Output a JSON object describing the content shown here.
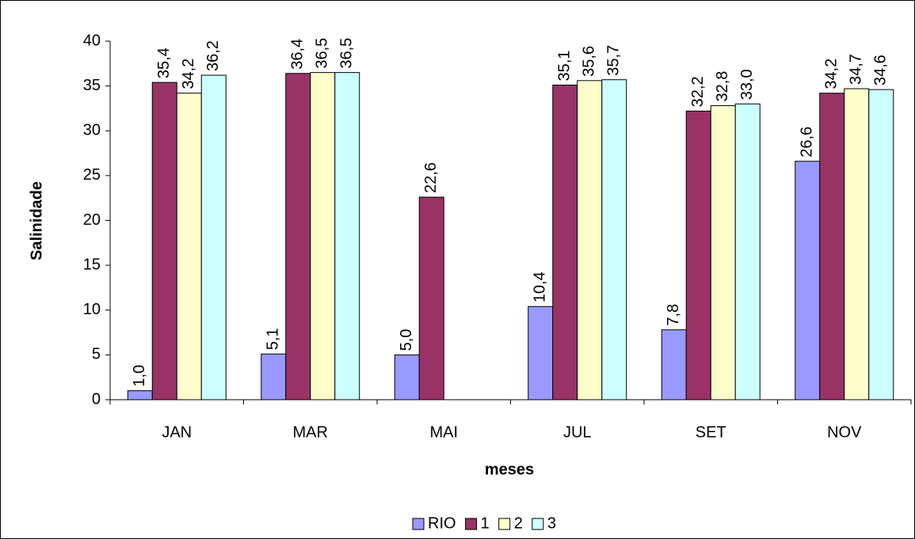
{
  "chart_data": {
    "type": "bar",
    "x_label": "meses",
    "y_label": "Salinidade",
    "categories": [
      "JAN",
      "MAR",
      "MAI",
      "JUL",
      "SET",
      "NOV"
    ],
    "series": [
      {
        "name": "RIO",
        "color": "#9999ff",
        "values": [
          1.0,
          5.1,
          5.0,
          10.4,
          7.8,
          26.6
        ],
        "value_labels": [
          "1,0",
          "5,1",
          "5,0",
          "10,4",
          "7,8",
          "26,6"
        ]
      },
      {
        "name": "1",
        "color": "#993366",
        "values": [
          35.4,
          36.4,
          22.6,
          35.1,
          32.2,
          34.2
        ],
        "value_labels": [
          "35,4",
          "36,4",
          "22,6",
          "35,1",
          "32,2",
          "34,2"
        ]
      },
      {
        "name": "2",
        "color": "#ffffcc",
        "values": [
          34.2,
          36.5,
          null,
          35.6,
          32.8,
          34.7
        ],
        "value_labels": [
          "34,2",
          "36,5",
          null,
          "35,6",
          "32,8",
          "34,7"
        ]
      },
      {
        "name": "3",
        "color": "#ccffff",
        "values": [
          36.2,
          36.5,
          null,
          35.7,
          33.0,
          34.6
        ],
        "value_labels": [
          "36,2",
          "36,5",
          null,
          "35,7",
          "33,0",
          "34,6"
        ]
      }
    ],
    "ylim": [
      0,
      40
    ],
    "yticks": [
      0,
      5,
      10,
      15,
      20,
      25,
      30,
      35,
      40
    ],
    "grid": false,
    "legend": "bottom"
  }
}
